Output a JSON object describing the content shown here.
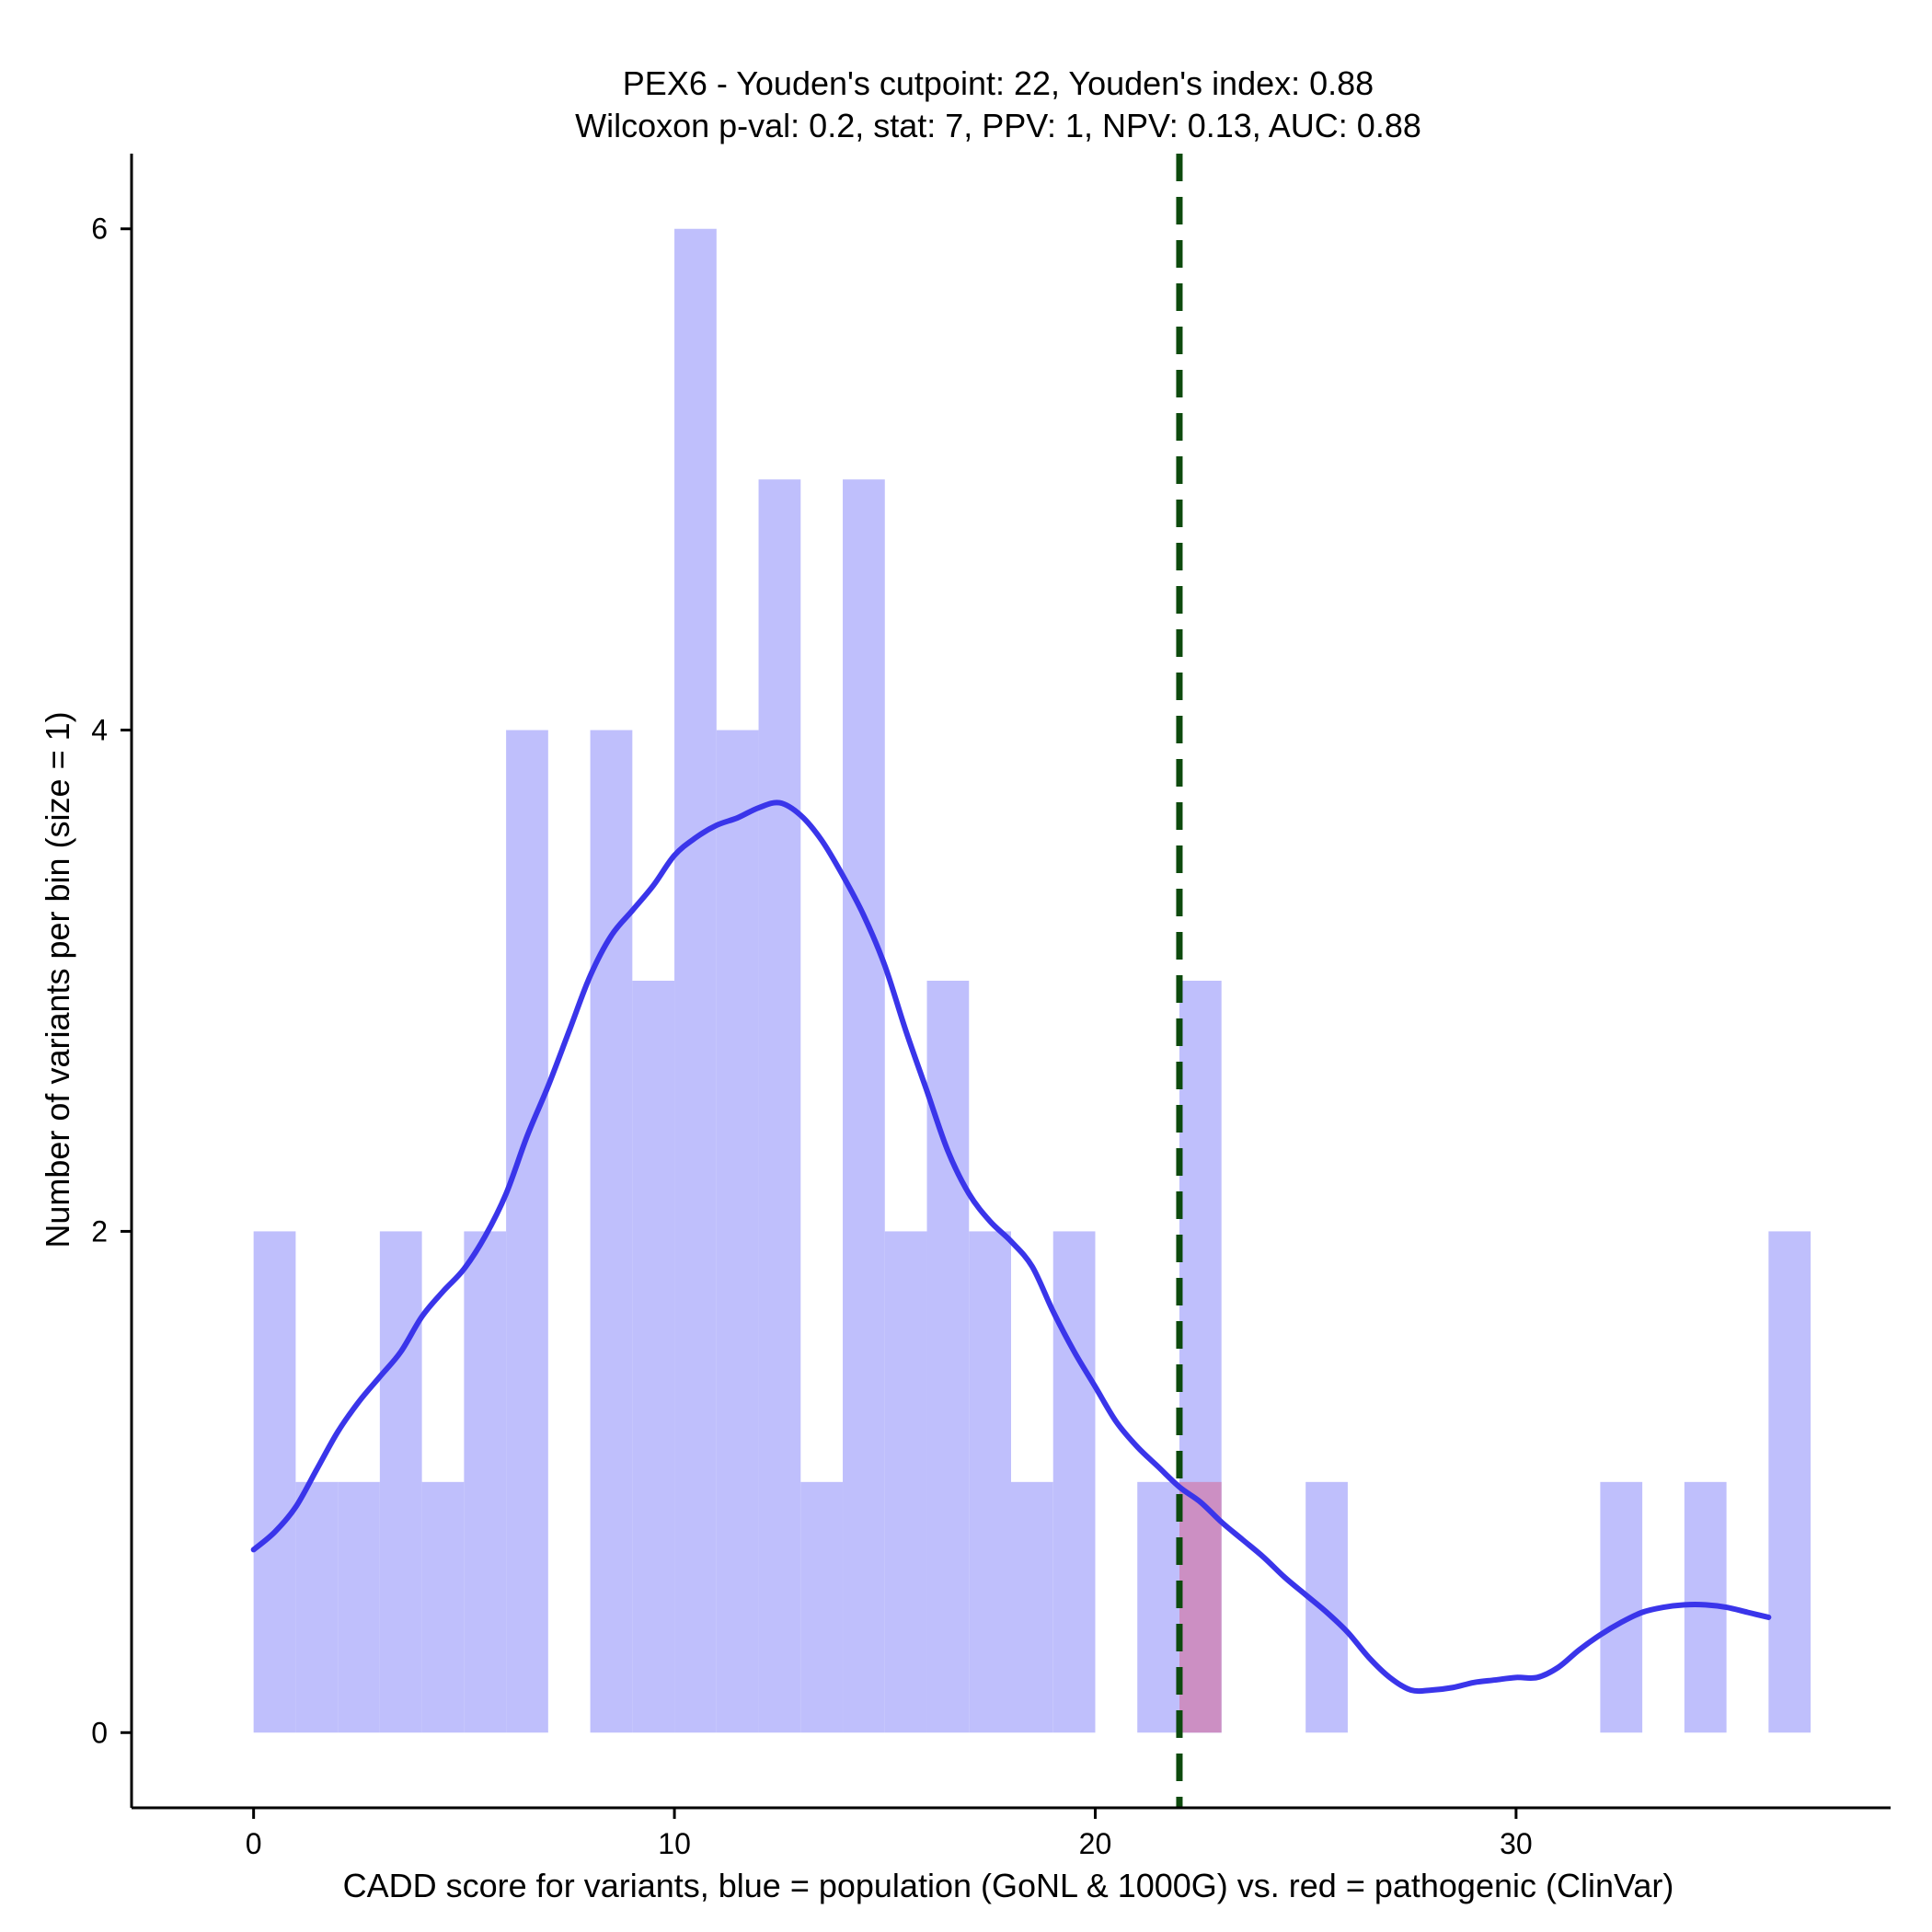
{
  "chart_data": {
    "type": "histogram",
    "title_line1": "PEX6 - Youden's cutpoint: 22, Youden's index: 0.88",
    "title_line2": "Wilcoxon p-val: 0.2, stat: 7, PPV: 1, NPV: 0.13, AUC: 0.88",
    "xlabel": "CADD score for variants, blue = population (GoNL & 1000G) vs. red = pathogenic (ClinVar)",
    "ylabel": "Number of variants per bin (size = 1)",
    "xlim": [
      -2.9,
      38.9
    ],
    "ylim": [
      -0.3,
      6.3
    ],
    "x_ticks": [
      0,
      10,
      20,
      30
    ],
    "y_ticks": [
      0,
      2,
      4,
      6
    ],
    "bin_size": 1,
    "cutpoint": 22,
    "series": [
      {
        "name": "population (GoNL & 1000G)",
        "color": "#bfbffc",
        "bins": [
          {
            "x0": 0,
            "count": 2
          },
          {
            "x0": 1,
            "count": 1
          },
          {
            "x0": 2,
            "count": 1
          },
          {
            "x0": 3,
            "count": 2
          },
          {
            "x0": 4,
            "count": 1
          },
          {
            "x0": 5,
            "count": 2
          },
          {
            "x0": 6,
            "count": 4
          },
          {
            "x0": 8,
            "count": 4
          },
          {
            "x0": 9,
            "count": 3
          },
          {
            "x0": 10,
            "count": 6
          },
          {
            "x0": 11,
            "count": 4
          },
          {
            "x0": 12,
            "count": 5
          },
          {
            "x0": 13,
            "count": 1
          },
          {
            "x0": 14,
            "count": 5
          },
          {
            "x0": 15,
            "count": 2
          },
          {
            "x0": 16,
            "count": 3
          },
          {
            "x0": 17,
            "count": 2
          },
          {
            "x0": 18,
            "count": 1
          },
          {
            "x0": 19,
            "count": 2
          },
          {
            "x0": 21,
            "count": 1
          },
          {
            "x0": 22,
            "count": 3
          },
          {
            "x0": 25,
            "count": 1
          },
          {
            "x0": 32,
            "count": 1
          },
          {
            "x0": 34,
            "count": 1
          },
          {
            "x0": 36,
            "count": 2
          }
        ]
      },
      {
        "name": "pathogenic (ClinVar)",
        "color": "#cc8fc3",
        "bins": [
          {
            "x0": 22,
            "count": 1
          }
        ]
      }
    ],
    "density_line": {
      "name": "population density",
      "color": "#3a35ea",
      "points": [
        [
          0,
          0.73
        ],
        [
          0.5,
          0.8
        ],
        [
          1,
          0.9
        ],
        [
          1.5,
          1.05
        ],
        [
          2,
          1.2
        ],
        [
          2.5,
          1.32
        ],
        [
          3,
          1.42
        ],
        [
          3.5,
          1.52
        ],
        [
          4,
          1.66
        ],
        [
          4.5,
          1.76
        ],
        [
          5,
          1.85
        ],
        [
          5.5,
          1.98
        ],
        [
          6,
          2.15
        ],
        [
          6.5,
          2.38
        ],
        [
          7,
          2.58
        ],
        [
          7.5,
          2.8
        ],
        [
          8,
          3.02
        ],
        [
          8.5,
          3.18
        ],
        [
          9,
          3.28
        ],
        [
          9.5,
          3.38
        ],
        [
          10,
          3.5
        ],
        [
          10.5,
          3.57
        ],
        [
          11,
          3.62
        ],
        [
          11.5,
          3.65
        ],
        [
          12,
          3.69
        ],
        [
          12.5,
          3.71
        ],
        [
          13,
          3.66
        ],
        [
          13.5,
          3.56
        ],
        [
          14,
          3.42
        ],
        [
          14.5,
          3.26
        ],
        [
          15,
          3.06
        ],
        [
          15.5,
          2.8
        ],
        [
          16,
          2.56
        ],
        [
          16.5,
          2.32
        ],
        [
          17,
          2.15
        ],
        [
          17.5,
          2.04
        ],
        [
          18,
          1.96
        ],
        [
          18.5,
          1.86
        ],
        [
          19,
          1.68
        ],
        [
          19.5,
          1.52
        ],
        [
          20,
          1.38
        ],
        [
          20.5,
          1.24
        ],
        [
          21,
          1.14
        ],
        [
          21.5,
          1.06
        ],
        [
          22,
          0.98
        ],
        [
          22.5,
          0.92
        ],
        [
          23,
          0.84
        ],
        [
          23.5,
          0.77
        ],
        [
          24,
          0.7
        ],
        [
          24.5,
          0.62
        ],
        [
          25,
          0.55
        ],
        [
          25.5,
          0.48
        ],
        [
          26,
          0.4
        ],
        [
          26.5,
          0.3
        ],
        [
          27,
          0.22
        ],
        [
          27.5,
          0.17
        ],
        [
          28,
          0.17
        ],
        [
          28.5,
          0.18
        ],
        [
          29,
          0.2
        ],
        [
          29.5,
          0.21
        ],
        [
          30,
          0.22
        ],
        [
          30.5,
          0.22
        ],
        [
          31,
          0.26
        ],
        [
          31.5,
          0.33
        ],
        [
          32,
          0.39
        ],
        [
          32.5,
          0.44
        ],
        [
          33,
          0.48
        ],
        [
          33.5,
          0.5
        ],
        [
          34,
          0.51
        ],
        [
          34.5,
          0.51
        ],
        [
          35,
          0.5
        ],
        [
          35.5,
          0.48
        ],
        [
          36,
          0.46
        ]
      ]
    },
    "cutpoint_line_color": "#0d4a0d"
  }
}
